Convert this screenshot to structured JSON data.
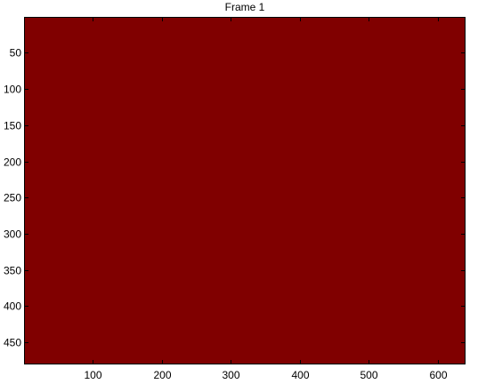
{
  "chart_data": {
    "type": "heatmap",
    "title": "Frame 1",
    "xlabel": "",
    "ylabel": "",
    "x_ticks": [
      100,
      200,
      300,
      400,
      500,
      600
    ],
    "y_ticks": [
      50,
      100,
      150,
      200,
      250,
      300,
      350,
      400,
      450
    ],
    "xlim": [
      0.5,
      640.5
    ],
    "ylim": [
      0.5,
      480.5
    ],
    "y_direction": "reversed",
    "image_size": {
      "width": 640,
      "height": 480
    },
    "fill_color": "#800000",
    "grid": false,
    "legend": "none"
  }
}
